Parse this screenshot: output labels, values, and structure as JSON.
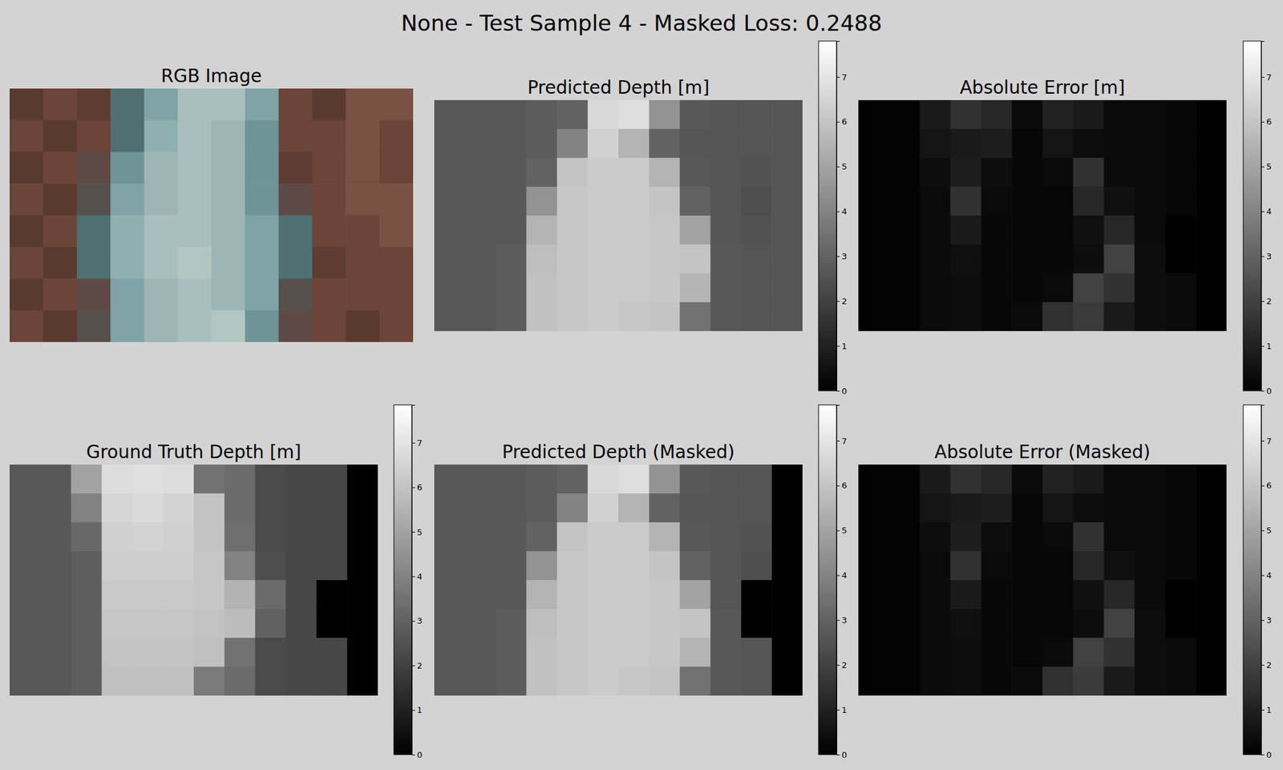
{
  "figure_title": "None - Test Sample 4 - Masked Loss: 0.2488",
  "chart_data": [
    {
      "type": "image",
      "title": "RGB Image",
      "colors": [
        [
          "#5a3a2f",
          "#6b4538",
          "#5e3c31",
          "#4f6f72",
          "#7fa3a6",
          "#a9bfbd",
          "#a9bfbd",
          "#7fa3a6",
          "#6b4538",
          "#5a3a2f",
          "#7a5244",
          "#7a5244"
        ],
        [
          "#6b4538",
          "#5a3a2f",
          "#6b4538",
          "#4f6f72",
          "#8fb0b0",
          "#a9bfbd",
          "#9db5b5",
          "#6f9497",
          "#6b4538",
          "#6b4538",
          "#7a5244",
          "#6b4538"
        ],
        [
          "#5a3a2f",
          "#6b4538",
          "#5e4a44",
          "#6f9497",
          "#9db5b5",
          "#a9bfbd",
          "#9db5b5",
          "#6f9497",
          "#5e3c31",
          "#6b4538",
          "#7a5244",
          "#6b4538"
        ],
        [
          "#6b4538",
          "#5a3a2f",
          "#55504c",
          "#7fa3a6",
          "#9db5b5",
          "#a9bfbd",
          "#9db5b5",
          "#6f9497",
          "#5e4a44",
          "#6b4538",
          "#7a5244",
          "#7a5244"
        ],
        [
          "#5a3a2f",
          "#6b4538",
          "#4f6f72",
          "#8fb0b0",
          "#a9bfbd",
          "#a9bfbd",
          "#9db5b5",
          "#7fa3a6",
          "#4f6f72",
          "#6b4538",
          "#6b4538",
          "#7a5244"
        ],
        [
          "#6b4538",
          "#5a3a2f",
          "#4f6f72",
          "#8fb0b0",
          "#a9bfbd",
          "#b3c6c3",
          "#9db5b5",
          "#7fa3a6",
          "#4f6f72",
          "#5e3c31",
          "#6b4538",
          "#6b4538"
        ],
        [
          "#5a3a2f",
          "#6b4538",
          "#5e4a44",
          "#7fa3a6",
          "#9db5b5",
          "#a9bfbd",
          "#9db5b5",
          "#7fa3a6",
          "#55504c",
          "#6b4538",
          "#6b4538",
          "#6b4538"
        ],
        [
          "#6b4538",
          "#5a3a2f",
          "#55504c",
          "#7fa3a6",
          "#9db5b5",
          "#a9bfbd",
          "#b3c6c3",
          "#6f9497",
          "#5e4a44",
          "#6b4538",
          "#5a3a2f",
          "#6b4538"
        ]
      ]
    },
    {
      "type": "heatmap",
      "title": "Predicted Depth [m]",
      "color": "gray",
      "zlim": [
        0,
        7.8
      ],
      "zticks": [
        0,
        1,
        2,
        3,
        4,
        5,
        6,
        7
      ],
      "cells": [
        [
          2.7,
          2.7,
          2.7,
          2.8,
          3.0,
          6.6,
          6.8,
          4.5,
          2.7,
          2.6,
          2.6,
          2.6
        ],
        [
          2.7,
          2.7,
          2.7,
          2.8,
          4.0,
          6.4,
          5.5,
          3.0,
          2.6,
          2.6,
          2.6,
          2.6
        ],
        [
          2.7,
          2.7,
          2.7,
          3.0,
          6.0,
          6.2,
          6.2,
          5.5,
          2.7,
          2.6,
          2.5,
          2.6
        ],
        [
          2.7,
          2.7,
          2.7,
          4.5,
          6.1,
          6.2,
          6.2,
          6.0,
          3.0,
          2.6,
          2.4,
          2.6
        ],
        [
          2.7,
          2.7,
          2.7,
          5.5,
          6.1,
          6.2,
          6.2,
          6.1,
          5.0,
          2.6,
          2.5,
          2.6
        ],
        [
          2.7,
          2.7,
          2.8,
          5.8,
          6.1,
          6.2,
          6.2,
          6.1,
          6.0,
          2.7,
          2.6,
          2.6
        ],
        [
          2.7,
          2.7,
          2.8,
          5.9,
          6.1,
          6.2,
          6.2,
          6.1,
          5.5,
          2.7,
          2.6,
          2.6
        ],
        [
          2.7,
          2.7,
          2.8,
          5.9,
          6.1,
          6.2,
          6.1,
          6.0,
          3.5,
          2.7,
          2.6,
          2.6
        ]
      ]
    },
    {
      "type": "heatmap",
      "title": "Absolute Error [m]",
      "color": "gray",
      "zlim": [
        0,
        7.8
      ],
      "zticks": [
        0,
        1,
        2,
        3,
        4,
        5,
        6,
        7
      ],
      "cells": [
        [
          0.1,
          0.1,
          0.8,
          1.5,
          1.2,
          0.3,
          1.0,
          0.8,
          0.3,
          0.3,
          0.2,
          0
        ],
        [
          0.1,
          0.1,
          0.6,
          0.8,
          0.9,
          0.2,
          0.6,
          0.4,
          0.3,
          0.3,
          0.2,
          0
        ],
        [
          0.1,
          0.1,
          0.4,
          0.9,
          0.4,
          0.2,
          0.3,
          1.5,
          0.3,
          0.3,
          0.2,
          0
        ],
        [
          0.1,
          0.1,
          0.3,
          1.5,
          0.3,
          0.2,
          0.2,
          1.2,
          0.5,
          0.3,
          0.2,
          0
        ],
        [
          0.1,
          0.1,
          0.3,
          0.8,
          0.2,
          0.2,
          0.2,
          0.5,
          1.2,
          0.3,
          0,
          0
        ],
        [
          0.1,
          0.1,
          0.3,
          0.5,
          0.2,
          0.2,
          0.2,
          0.4,
          2.0,
          0.4,
          0,
          0
        ],
        [
          0.1,
          0.1,
          0.3,
          0.4,
          0.2,
          0.2,
          0.3,
          2.0,
          1.5,
          0.4,
          0.3,
          0
        ],
        [
          0.1,
          0.1,
          0.3,
          0.4,
          0.2,
          0.3,
          1.5,
          1.8,
          0.8,
          0.4,
          0.3,
          0
        ]
      ]
    },
    {
      "type": "heatmap",
      "title": "Ground Truth Depth [m]",
      "color": "gray",
      "zlim": [
        0,
        7.85
      ],
      "zticks": [
        0,
        1,
        2,
        3,
        4,
        5,
        6,
        7
      ],
      "cells": [
        [
          2.7,
          2.7,
          5.0,
          6.8,
          6.9,
          6.8,
          3.5,
          3.3,
          2.3,
          2.2,
          2.2,
          0
        ],
        [
          2.7,
          2.7,
          4.0,
          6.6,
          6.7,
          6.5,
          6.0,
          3.3,
          2.3,
          2.2,
          2.2,
          0
        ],
        [
          2.7,
          2.7,
          3.2,
          6.4,
          6.5,
          6.4,
          6.0,
          3.4,
          2.3,
          2.2,
          2.2,
          0
        ],
        [
          2.7,
          2.7,
          2.9,
          6.3,
          6.3,
          6.3,
          6.1,
          4.0,
          2.4,
          2.2,
          2.2,
          0
        ],
        [
          2.7,
          2.7,
          2.9,
          6.2,
          6.2,
          6.2,
          6.1,
          5.5,
          3.3,
          2.2,
          0,
          0
        ],
        [
          2.7,
          2.7,
          2.9,
          6.1,
          6.1,
          6.1,
          6.0,
          5.8,
          3.0,
          2.2,
          0,
          0
        ],
        [
          2.7,
          2.7,
          2.9,
          6.0,
          6.0,
          6.0,
          5.9,
          3.5,
          2.3,
          2.2,
          2.2,
          0
        ],
        [
          2.7,
          2.7,
          2.9,
          5.9,
          5.9,
          5.9,
          3.8,
          3.3,
          2.3,
          2.2,
          2.2,
          0
        ]
      ]
    },
    {
      "type": "heatmap",
      "title": "Predicted Depth (Masked)",
      "color": "gray",
      "zlim": [
        0,
        7.8
      ],
      "zticks": [
        0,
        1,
        2,
        3,
        4,
        5,
        6,
        7
      ],
      "cells": [
        [
          2.7,
          2.7,
          2.7,
          2.8,
          3.0,
          6.6,
          6.8,
          4.5,
          2.7,
          2.6,
          2.6,
          0
        ],
        [
          2.7,
          2.7,
          2.7,
          2.8,
          4.0,
          6.4,
          5.5,
          3.0,
          2.6,
          2.6,
          2.6,
          0
        ],
        [
          2.7,
          2.7,
          2.7,
          3.0,
          6.0,
          6.2,
          6.2,
          5.5,
          2.7,
          2.6,
          2.5,
          0
        ],
        [
          2.7,
          2.7,
          2.7,
          4.5,
          6.1,
          6.2,
          6.2,
          6.0,
          3.0,
          2.6,
          2.4,
          0
        ],
        [
          2.7,
          2.7,
          2.7,
          5.5,
          6.1,
          6.2,
          6.2,
          6.1,
          5.0,
          2.6,
          0,
          0
        ],
        [
          2.7,
          2.7,
          2.8,
          5.8,
          6.1,
          6.2,
          6.2,
          6.1,
          6.0,
          2.7,
          0,
          0
        ],
        [
          2.7,
          2.7,
          2.8,
          5.9,
          6.1,
          6.2,
          6.2,
          6.1,
          5.5,
          2.7,
          2.6,
          0
        ],
        [
          2.7,
          2.7,
          2.8,
          5.9,
          6.1,
          6.2,
          6.1,
          6.0,
          3.5,
          2.7,
          2.6,
          0
        ]
      ]
    },
    {
      "type": "heatmap",
      "title": "Absolute Error (Masked)",
      "color": "gray",
      "zlim": [
        0,
        7.8
      ],
      "zticks": [
        0,
        1,
        2,
        3,
        4,
        5,
        6,
        7
      ],
      "cells": [
        [
          0.1,
          0.1,
          0.8,
          1.5,
          1.2,
          0.3,
          1.0,
          0.8,
          0.3,
          0.3,
          0.2,
          0
        ],
        [
          0.1,
          0.1,
          0.6,
          0.8,
          0.9,
          0.2,
          0.6,
          0.4,
          0.3,
          0.3,
          0.2,
          0
        ],
        [
          0.1,
          0.1,
          0.4,
          0.9,
          0.4,
          0.2,
          0.3,
          1.5,
          0.3,
          0.3,
          0.2,
          0
        ],
        [
          0.1,
          0.1,
          0.3,
          1.5,
          0.3,
          0.2,
          0.2,
          1.2,
          0.5,
          0.3,
          0.2,
          0
        ],
        [
          0.1,
          0.1,
          0.3,
          0.8,
          0.2,
          0.2,
          0.2,
          0.5,
          1.2,
          0.3,
          0,
          0
        ],
        [
          0.1,
          0.1,
          0.3,
          0.5,
          0.2,
          0.2,
          0.2,
          0.4,
          2.0,
          0.4,
          0,
          0
        ],
        [
          0.1,
          0.1,
          0.3,
          0.4,
          0.2,
          0.2,
          0.3,
          2.0,
          1.5,
          0.4,
          0.3,
          0
        ],
        [
          0.1,
          0.1,
          0.3,
          0.4,
          0.2,
          0.3,
          1.5,
          1.8,
          0.8,
          0.4,
          0.3,
          0
        ]
      ]
    }
  ]
}
